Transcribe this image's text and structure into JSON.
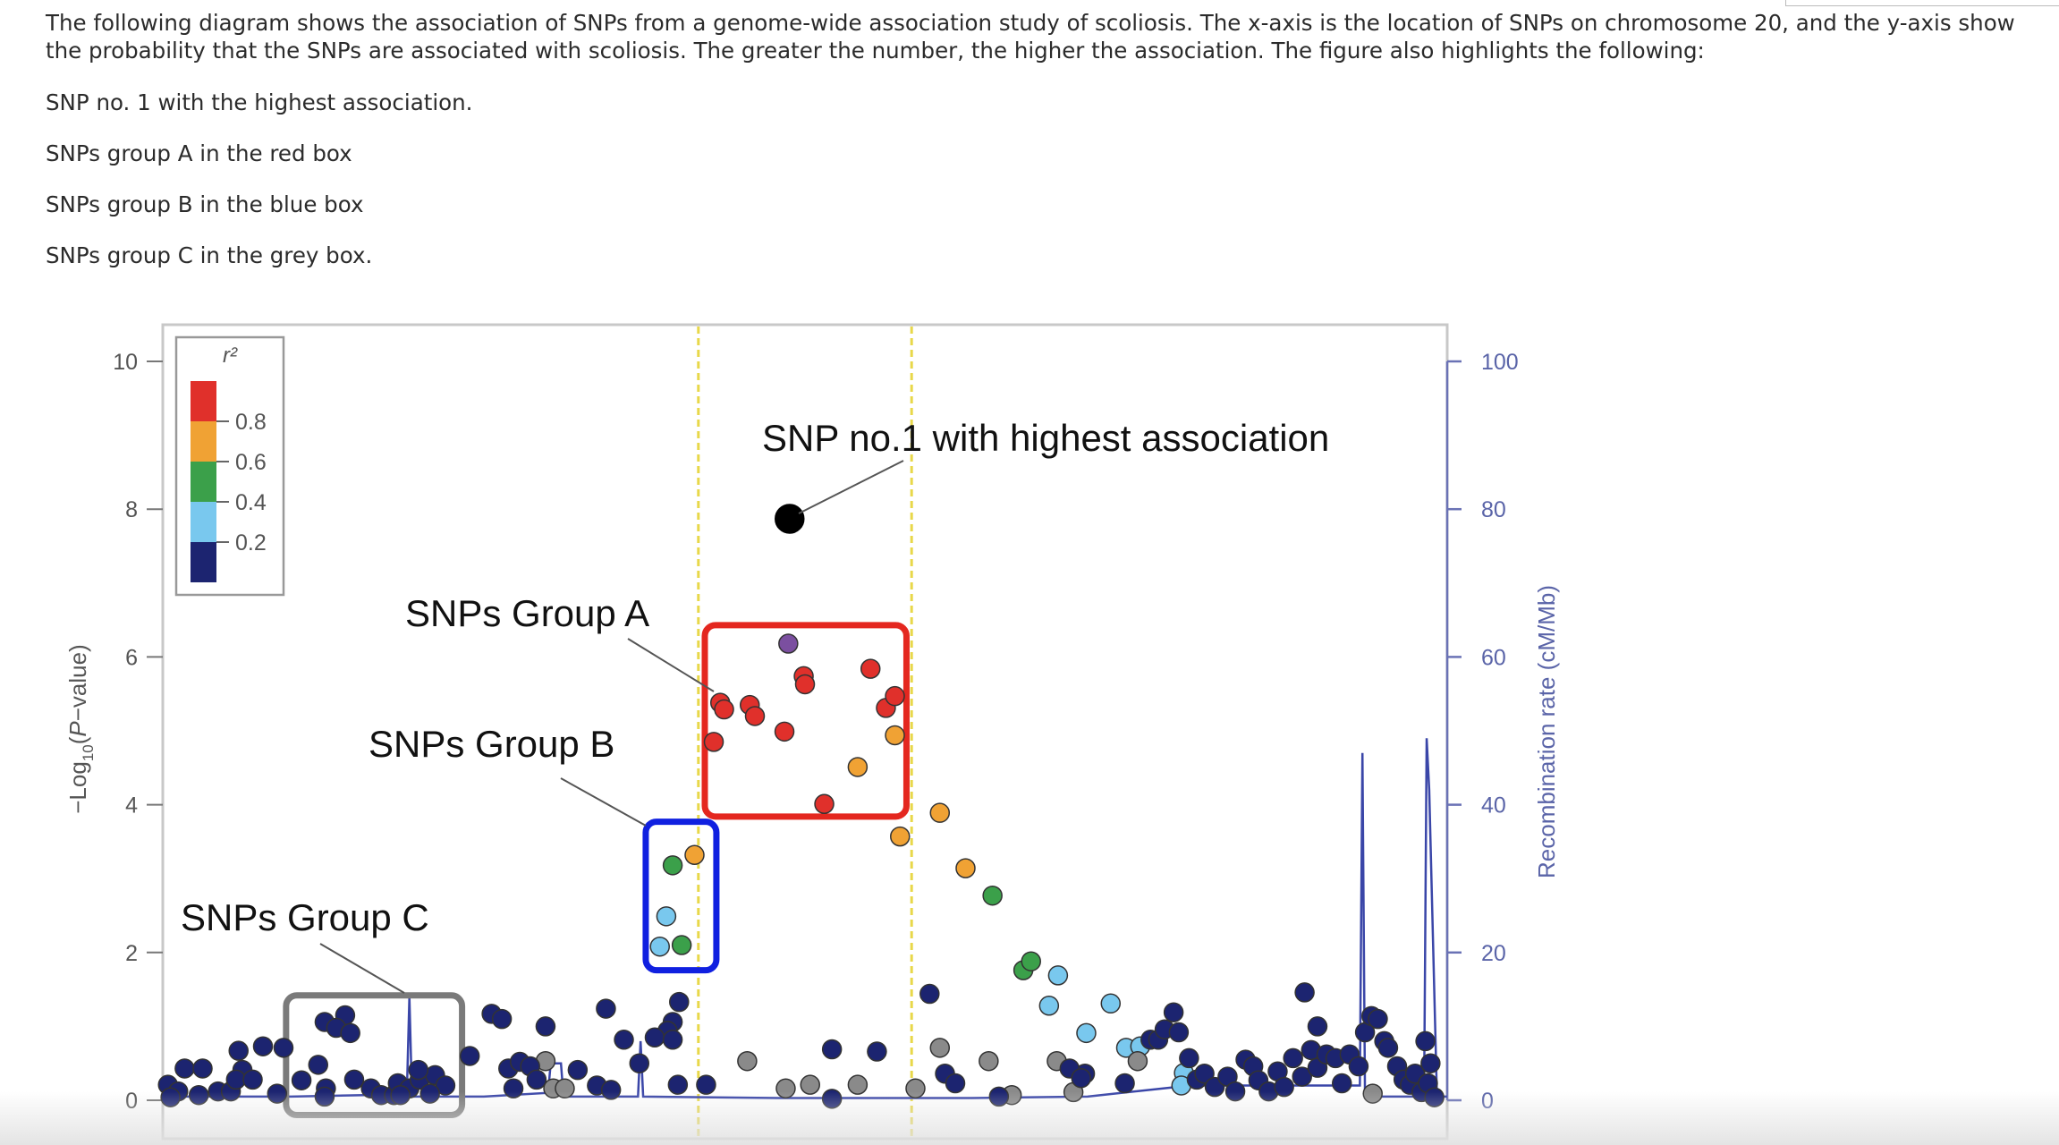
{
  "question": {
    "intro": "The following diagram shows the association of SNPs from a genome-wide association study of scoliosis. The x-axis is the location of SNPs on chromosome 20, and the y-axis show the probability that the SNPs are associated with scoliosis. The greater the number, the higher the association. The figure also highlights the following:",
    "items": [
      "SNP no. 1 with the highest association.",
      "SNPs group A in the red box",
      "SNPs group B in the blue box",
      "SNPs group C in the grey box."
    ]
  },
  "chart_data": {
    "type": "scatter",
    "title": "",
    "xlabel": "",
    "ylabel_parts": [
      "−Log",
      "10",
      "(",
      "P",
      "−value)"
    ],
    "ylabel2": "Recombination rate (cM/Mb)",
    "ylim": [
      0,
      10
    ],
    "yticks": [
      "0",
      "2",
      "4",
      "6",
      "8",
      "10"
    ],
    "ylim2": [
      0,
      100
    ],
    "yticks2": [
      "0",
      "20",
      "40",
      "60",
      "80",
      "100"
    ],
    "grid": false,
    "legend": {
      "title": "r²",
      "placement": "top-left",
      "labels": [
        "0.8",
        "0.6",
        "0.4",
        "0.2"
      ],
      "colors": [
        "#e0302b",
        "#f0a234",
        "#3ba04a",
        "#79c8ee",
        "#1c2470"
      ]
    },
    "colors": {
      "lead": "#000000",
      "purple": "#7b4fa0",
      "red": "#e0302b",
      "orange": "#f0a234",
      "green": "#3ba04a",
      "lightblue": "#79c8ee",
      "navy": "#1c2470",
      "grey": "#8a8a8a",
      "recomb": "#3a46a8",
      "highlight_lines": "#e8d84a"
    },
    "highlight_x": [
      41.7,
      58.3
    ],
    "series": [
      {
        "group": "lead",
        "points": [
          [
            48.8,
            7.87
          ]
        ]
      },
      {
        "group": "purple",
        "points": [
          [
            48.7,
            6.18
          ]
        ]
      },
      {
        "group": "red",
        "points": [
          [
            43.4,
            5.38
          ],
          [
            43.7,
            5.29
          ],
          [
            45.7,
            5.35
          ],
          [
            46.1,
            5.2
          ],
          [
            42.9,
            4.85
          ],
          [
            48.4,
            4.99
          ],
          [
            49.9,
            5.74
          ],
          [
            50.0,
            5.63
          ],
          [
            55.1,
            5.84
          ],
          [
            56.3,
            5.31
          ],
          [
            57.0,
            5.47
          ],
          [
            51.5,
            4.01
          ]
        ]
      },
      {
        "group": "orange",
        "points": [
          [
            57.0,
            4.94
          ],
          [
            54.1,
            4.51
          ],
          [
            57.4,
            3.57
          ],
          [
            60.5,
            3.89
          ],
          [
            62.5,
            3.14
          ],
          [
            41.4,
            3.32
          ]
        ]
      },
      {
        "group": "green",
        "points": [
          [
            39.7,
            3.18
          ],
          [
            40.4,
            2.1
          ],
          [
            64.6,
            2.77
          ],
          [
            67.0,
            1.76
          ],
          [
            67.6,
            1.88
          ]
        ]
      },
      {
        "group": "lightblue",
        "points": [
          [
            39.2,
            2.49
          ],
          [
            38.7,
            2.08
          ],
          [
            69.7,
            1.69
          ],
          [
            69.0,
            1.28
          ],
          [
            73.8,
            1.31
          ],
          [
            71.9,
            0.91
          ],
          [
            75.0,
            0.71
          ],
          [
            76.1,
            0.73
          ],
          [
            79.5,
            0.37
          ],
          [
            79.3,
            0.2
          ]
        ]
      },
      {
        "group": "grey",
        "points": [
          [
            45.5,
            0.53
          ],
          [
            48.5,
            0.16
          ],
          [
            50.4,
            0.21
          ],
          [
            54.1,
            0.21
          ],
          [
            58.6,
            0.16
          ],
          [
            60.5,
            0.71
          ],
          [
            64.3,
            0.53
          ],
          [
            66.1,
            0.07
          ],
          [
            69.6,
            0.53
          ],
          [
            70.9,
            0.11
          ],
          [
            75.9,
            0.53
          ],
          [
            29.8,
            0.53
          ],
          [
            30.4,
            0.16
          ],
          [
            31.3,
            0.16
          ],
          [
            94.2,
            0.09
          ]
        ]
      },
      {
        "group": "navy",
        "points": [
          [
            0.4,
            0.21
          ],
          [
            1.7,
            0.43
          ],
          [
            3.1,
            0.43
          ],
          [
            1.2,
            0.12
          ],
          [
            2.8,
            0.07
          ],
          [
            4.3,
            0.12
          ],
          [
            5.3,
            0.12
          ],
          [
            6.2,
            0.41
          ],
          [
            5.9,
            0.67
          ],
          [
            7.8,
            0.73
          ],
          [
            9.4,
            0.71
          ],
          [
            5.7,
            0.28
          ],
          [
            7.0,
            0.28
          ],
          [
            8.9,
            0.09
          ],
          [
            0.6,
            0.04
          ],
          [
            12.6,
            1.06
          ],
          [
            14.2,
            1.15
          ],
          [
            13.5,
            0.98
          ],
          [
            14.6,
            0.91
          ],
          [
            12.1,
            0.48
          ],
          [
            10.8,
            0.27
          ],
          [
            12.7,
            0.16
          ],
          [
            12.6,
            0.05
          ],
          [
            14.9,
            0.28
          ],
          [
            16.2,
            0.16
          ],
          [
            17.0,
            0.07
          ],
          [
            18.0,
            0.07
          ],
          [
            18.3,
            0.23
          ],
          [
            19.2,
            0.16
          ],
          [
            20.0,
            0.28
          ],
          [
            21.2,
            0.34
          ],
          [
            22.0,
            0.2
          ],
          [
            20.8,
            0.09
          ],
          [
            19.9,
            0.41
          ],
          [
            18.5,
            0.07
          ],
          [
            23.9,
            0.6
          ],
          [
            25.6,
            1.17
          ],
          [
            26.4,
            1.1
          ],
          [
            26.9,
            0.43
          ],
          [
            27.8,
            0.52
          ],
          [
            28.6,
            0.46
          ],
          [
            29.8,
            1.0
          ],
          [
            29.1,
            0.28
          ],
          [
            27.3,
            0.16
          ],
          [
            32.3,
            0.41
          ],
          [
            33.8,
            0.2
          ],
          [
            34.5,
            1.24
          ],
          [
            34.9,
            0.14
          ],
          [
            35.9,
            0.82
          ],
          [
            37.1,
            0.5
          ],
          [
            40.2,
            1.33
          ],
          [
            39.7,
            1.06
          ],
          [
            39.3,
            0.94
          ],
          [
            38.3,
            0.85
          ],
          [
            39.7,
            0.82
          ],
          [
            40.1,
            0.21
          ],
          [
            42.3,
            0.21
          ],
          [
            52.1,
            0.69
          ],
          [
            55.6,
            0.66
          ],
          [
            52.1,
            0.02
          ],
          [
            59.7,
            1.44
          ],
          [
            60.9,
            0.36
          ],
          [
            61.7,
            0.23
          ],
          [
            65.1,
            0.05
          ],
          [
            71.8,
            0.36
          ],
          [
            70.6,
            0.43
          ],
          [
            71.5,
            0.3
          ],
          [
            74.9,
            0.23
          ],
          [
            76.9,
            0.82
          ],
          [
            77.5,
            0.82
          ],
          [
            78.0,
            0.96
          ],
          [
            78.7,
            1.19
          ],
          [
            79.1,
            0.92
          ],
          [
            79.9,
            0.57
          ],
          [
            80.5,
            0.28
          ],
          [
            81.1,
            0.36
          ],
          [
            81.9,
            0.18
          ],
          [
            82.9,
            0.32
          ],
          [
            83.5,
            0.12
          ],
          [
            84.3,
            0.55
          ],
          [
            84.9,
            0.46
          ],
          [
            85.3,
            0.27
          ],
          [
            86.1,
            0.12
          ],
          [
            86.8,
            0.39
          ],
          [
            87.3,
            0.18
          ],
          [
            88.9,
            1.46
          ],
          [
            89.9,
            1.0
          ],
          [
            88.0,
            0.57
          ],
          [
            89.4,
            0.68
          ],
          [
            88.7,
            0.32
          ],
          [
            89.9,
            0.44
          ],
          [
            90.6,
            0.62
          ],
          [
            91.3,
            0.57
          ],
          [
            91.8,
            0.23
          ],
          [
            92.4,
            0.62
          ],
          [
            93.1,
            0.46
          ],
          [
            93.6,
            0.92
          ],
          [
            94.1,
            1.14
          ],
          [
            94.6,
            1.1
          ],
          [
            95.1,
            0.8
          ],
          [
            95.4,
            0.71
          ],
          [
            96.1,
            0.46
          ],
          [
            96.6,
            0.28
          ],
          [
            97.1,
            0.21
          ],
          [
            97.5,
            0.36
          ],
          [
            98.0,
            0.11
          ],
          [
            98.3,
            0.8
          ],
          [
            98.7,
            0.5
          ],
          [
            98.5,
            0.23
          ],
          [
            99.0,
            0.04
          ]
        ]
      }
    ],
    "recombination": [
      [
        0,
        0.5
      ],
      [
        10,
        0.5
      ],
      [
        19,
        0.8
      ],
      [
        19.2,
        14
      ],
      [
        19.4,
        0.5
      ],
      [
        25,
        0.5
      ],
      [
        30,
        1
      ],
      [
        30.2,
        5
      ],
      [
        31,
        5
      ],
      [
        31.2,
        0.5
      ],
      [
        37,
        0.5
      ],
      [
        37.2,
        8
      ],
      [
        37.4,
        0.5
      ],
      [
        48,
        0.3
      ],
      [
        63,
        0.3
      ],
      [
        72,
        0.5
      ],
      [
        80,
        2
      ],
      [
        92,
        2
      ],
      [
        93.2,
        2
      ],
      [
        93.4,
        47
      ],
      [
        93.6,
        0.5
      ],
      [
        98.2,
        0.5
      ],
      [
        98.4,
        49
      ],
      [
        98.6,
        42
      ],
      [
        99.2,
        0.5
      ],
      [
        100,
        0.5
      ]
    ],
    "annotations": [
      {
        "text": "SNP no.1 with highest association",
        "target": [
          48.8,
          7.87
        ]
      },
      {
        "text": "SNPs Group A",
        "box_color": "#e4271f",
        "box_x": [
          42.2,
          57.9
        ],
        "box_y": [
          3.84,
          6.43
        ]
      },
      {
        "text": "SNPs Group B",
        "box_color": "#1020e0",
        "box_x": [
          37.6,
          43.1
        ],
        "box_y": [
          1.76,
          3.77
        ]
      },
      {
        "text": "SNPs Group C",
        "box_color": "#7a7a7a",
        "box_x": [
          9.6,
          23.3
        ],
        "box_y": [
          -0.2,
          1.42
        ]
      }
    ]
  }
}
